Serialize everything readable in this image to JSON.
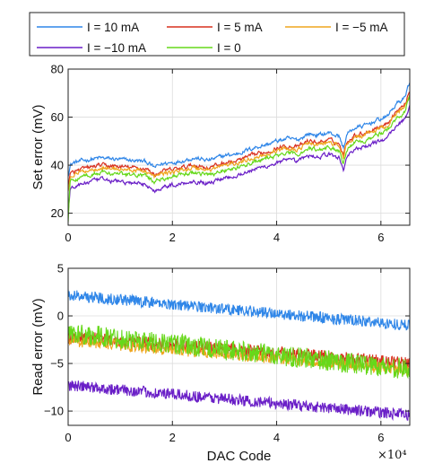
{
  "legend": {
    "placement": "top",
    "entries": [
      {
        "label": "I = 10 mA",
        "color": "#2f86e8"
      },
      {
        "label": "I = 5 mA",
        "color": "#d9301f"
      },
      {
        "label": "I = −5 mA",
        "color": "#efa51e"
      },
      {
        "label": "I = −10 mA",
        "color": "#6a1fc7"
      },
      {
        "label": "I = 0",
        "color": "#66d81a"
      }
    ]
  },
  "x_exponent_label": "×10⁴",
  "chart_data": [
    {
      "type": "line",
      "xlabel": "",
      "ylabel": "Set error (mV)",
      "xlim": [
        0,
        65535
      ],
      "ylim": [
        15,
        80
      ],
      "xticks": [
        0,
        20000,
        40000,
        60000
      ],
      "xtick_labels": [
        "0",
        "2",
        "4",
        "6"
      ],
      "yticks": [
        20,
        40,
        60,
        80
      ],
      "ytick_labels": [
        "20",
        "40",
        "60",
        "80"
      ],
      "grid": true,
      "x": [
        0,
        400,
        1000,
        3000,
        6000,
        9000,
        12000,
        15000,
        16500,
        18000,
        21000,
        24000,
        27000,
        30000,
        32000,
        34000,
        36000,
        38000,
        40000,
        42000,
        44000,
        46000,
        48000,
        50000,
        52000,
        52800,
        53500,
        55000,
        57000,
        59000,
        61000,
        63000,
        64500,
        65535
      ],
      "series": [
        {
          "name": "I = 10 mA",
          "color": "#2f86e8",
          "values": [
            36,
            40,
            41,
            42,
            43,
            42.5,
            42,
            41.5,
            39,
            40.5,
            41.5,
            43,
            42,
            44,
            44.5,
            46,
            47.5,
            48.5,
            50,
            51,
            50.5,
            53,
            52.5,
            53.5,
            52,
            47,
            53,
            55.5,
            56.5,
            58.5,
            60,
            65.5,
            68,
            75
          ]
        },
        {
          "name": "I = 5 mA",
          "color": "#d9301f",
          "values": [
            30,
            36,
            37,
            38.5,
            40,
            39.5,
            39,
            38.5,
            36,
            37.5,
            38.5,
            40,
            39,
            41,
            41.5,
            43,
            44.5,
            45.5,
            47,
            48,
            47.5,
            50,
            49.5,
            50.5,
            49,
            44,
            50,
            52.5,
            53.5,
            55.5,
            57,
            62.5,
            65,
            71
          ]
        },
        {
          "name": "I = −5 mA",
          "color": "#efa51e",
          "values": [
            29,
            35,
            36,
            37.5,
            39,
            38.5,
            38,
            37.5,
            35,
            36.5,
            37.5,
            39,
            38,
            40,
            40.5,
            42,
            43.5,
            44.5,
            46,
            47,
            46.5,
            49,
            48.5,
            49.5,
            48,
            43,
            49,
            51.5,
            52.5,
            54.5,
            56,
            61.5,
            64,
            70
          ]
        },
        {
          "name": "I = −10 mA",
          "color": "#6a1fc7",
          "values": [
            20,
            30,
            31,
            32.5,
            34,
            33.5,
            32.5,
            32,
            29,
            31,
            32,
            33.5,
            32.5,
            35,
            35.5,
            37,
            38.5,
            39.5,
            41,
            42,
            41.5,
            44,
            43.5,
            44.5,
            43,
            38,
            44,
            46.5,
            47.5,
            49.5,
            51,
            56.5,
            59,
            65
          ]
        },
        {
          "name": "I = 0",
          "color": "#66d81a",
          "values": [
            16,
            33,
            34,
            35.5,
            37,
            36.5,
            36,
            35.5,
            33,
            34.5,
            35.5,
            37,
            36,
            38,
            38.5,
            40,
            41.5,
            42.5,
            44,
            45,
            44.5,
            47,
            46.5,
            47.5,
            46,
            41,
            47,
            49.5,
            50.5,
            52.5,
            54,
            59.5,
            62,
            69
          ]
        }
      ]
    },
    {
      "type": "line",
      "xlabel": "DAC Code",
      "ylabel": "Read error (mV)",
      "xlim": [
        0,
        65535
      ],
      "ylim": [
        -11.5,
        5
      ],
      "xticks": [
        0,
        20000,
        40000,
        60000
      ],
      "xtick_labels": [
        "0",
        "2",
        "4",
        "6"
      ],
      "yticks": [
        -10,
        -5,
        0,
        5
      ],
      "ytick_labels": [
        "−10",
        "−5",
        "0",
        "5"
      ],
      "grid": true,
      "x": [
        0,
        65535
      ],
      "series": [
        {
          "name": "I = 10 mA",
          "color": "#2f86e8",
          "values": [
            2.2,
            -1.0
          ],
          "noise": 0.6
        },
        {
          "name": "I = 5 mA",
          "color": "#d9301f",
          "values": [
            -2.2,
            -5.0
          ],
          "noise": 0.7
        },
        {
          "name": "I = −5 mA",
          "color": "#efa51e",
          "values": [
            -2.6,
            -5.7
          ],
          "noise": 0.6
        },
        {
          "name": "I = −10 mA",
          "color": "#6a1fc7",
          "values": [
            -7.3,
            -10.4
          ],
          "noise": 0.6
        },
        {
          "name": "I = 0",
          "color": "#66d81a",
          "values": [
            -1.8,
            -5.6
          ],
          "noise": 1.1
        }
      ]
    }
  ]
}
